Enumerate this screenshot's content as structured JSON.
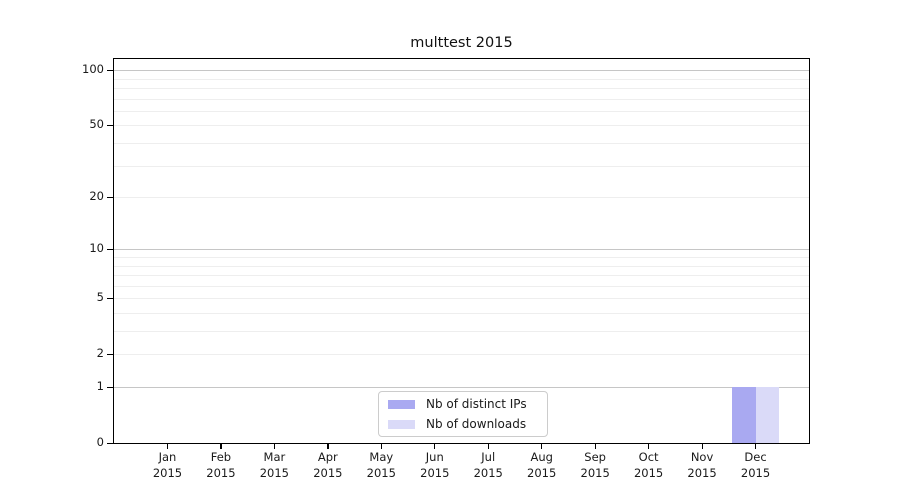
{
  "figure": {
    "background": "#ffffff"
  },
  "chart_data": {
    "type": "bar",
    "title": "multtest 2015",
    "categories": [
      "Jan",
      "Feb",
      "Mar",
      "Apr",
      "May",
      "Jun",
      "Jul",
      "Aug",
      "Sep",
      "Oct",
      "Nov",
      "Dec"
    ],
    "category_year": "2015",
    "series": [
      {
        "name": "Nb of distinct IPs",
        "color": "#a9a9f1",
        "values": [
          0,
          0,
          0,
          0,
          0,
          0,
          0,
          0,
          0,
          0,
          0,
          1
        ]
      },
      {
        "name": "Nb of downloads",
        "color": "#dadaf8",
        "values": [
          0,
          0,
          0,
          0,
          0,
          0,
          0,
          0,
          0,
          0,
          0,
          1
        ]
      }
    ],
    "xlabel": "",
    "ylabel": "",
    "y_axis": {
      "scale": "log1p",
      "tick_labels": [
        "0",
        "1",
        "2",
        "5",
        "10",
        "20",
        "50",
        "100"
      ],
      "tick_values": [
        0,
        1,
        2,
        5,
        10,
        20,
        50,
        100
      ],
      "major_gridlines": [
        1,
        10,
        100
      ],
      "minor_gridlines": [
        2,
        3,
        4,
        5,
        6,
        7,
        8,
        9,
        20,
        30,
        40,
        50,
        60,
        70,
        80,
        90
      ],
      "ylim": [
        0,
        115
      ]
    },
    "grid": "y-only",
    "legend_position": "lower-center"
  },
  "colors": {
    "axis_line": "#000000",
    "grid_major": "#c6c6c6",
    "grid_minor": "#eeeeee",
    "text": "#1a1a1a",
    "legend_border": "#cccccc",
    "legend_background": "#ffffff"
  }
}
